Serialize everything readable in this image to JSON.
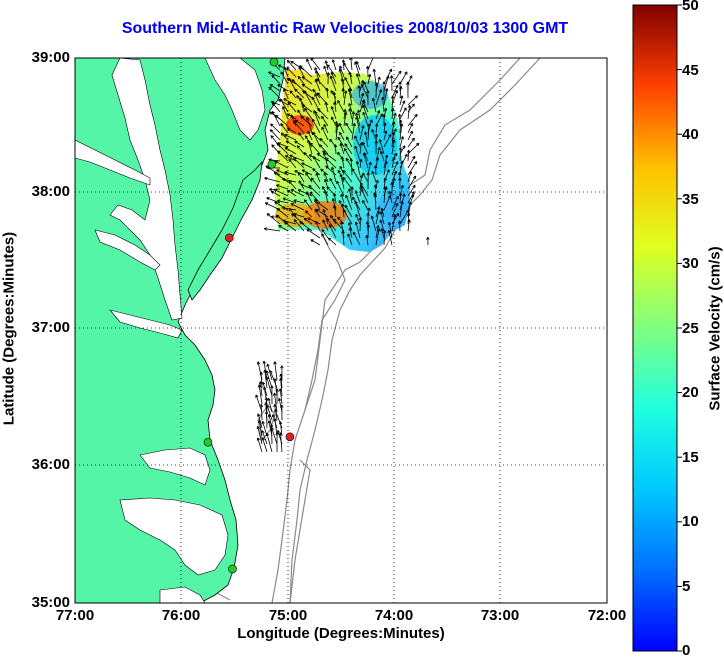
{
  "title": "Southern Mid-Atlantic Raw Velocities 2008/10/03 1300 GMT",
  "xlabel": "Longitude (Degrees:Minutes)",
  "ylabel": "Latitude (Degrees:Minutes)",
  "colorbar_label": "Surface Velocity (cm/s)",
  "x_ticks": [
    "77:00",
    "76:00",
    "75:00",
    "74:00",
    "73:00",
    "72:00"
  ],
  "y_ticks": [
    "39:00",
    "38:00",
    "37:00",
    "36:00",
    "35:00"
  ],
  "colorbar_ticks": [
    "50",
    "45",
    "40",
    "35",
    "30",
    "25",
    "20",
    "15",
    "10",
    "5",
    "0"
  ],
  "colors": {
    "land": "#55f5a8",
    "title": "#0000ee",
    "coastline": "#000000",
    "bathymetry": "#8a8a8a",
    "grid": "#000000"
  },
  "map": {
    "lon_range": [
      -77,
      -72
    ],
    "lat_range": [
      35,
      39
    ],
    "grid": "dotted",
    "colorbar_range": [
      0,
      50
    ],
    "colormap": "jet"
  },
  "stations": [
    {
      "lon": -75.13,
      "lat": 38.97,
      "color": "#22cc22"
    },
    {
      "lon": -75.15,
      "lat": 38.22,
      "color": "#22cc22"
    },
    {
      "lon": -75.55,
      "lat": 37.68,
      "color": "#dd2222"
    },
    {
      "lon": -75.75,
      "lat": 36.18,
      "color": "#22cc22"
    },
    {
      "lon": -75.52,
      "lat": 35.25,
      "color": "#22cc22"
    },
    {
      "lon": -74.98,
      "lat": 36.22,
      "color": "#dd2222"
    }
  ]
}
